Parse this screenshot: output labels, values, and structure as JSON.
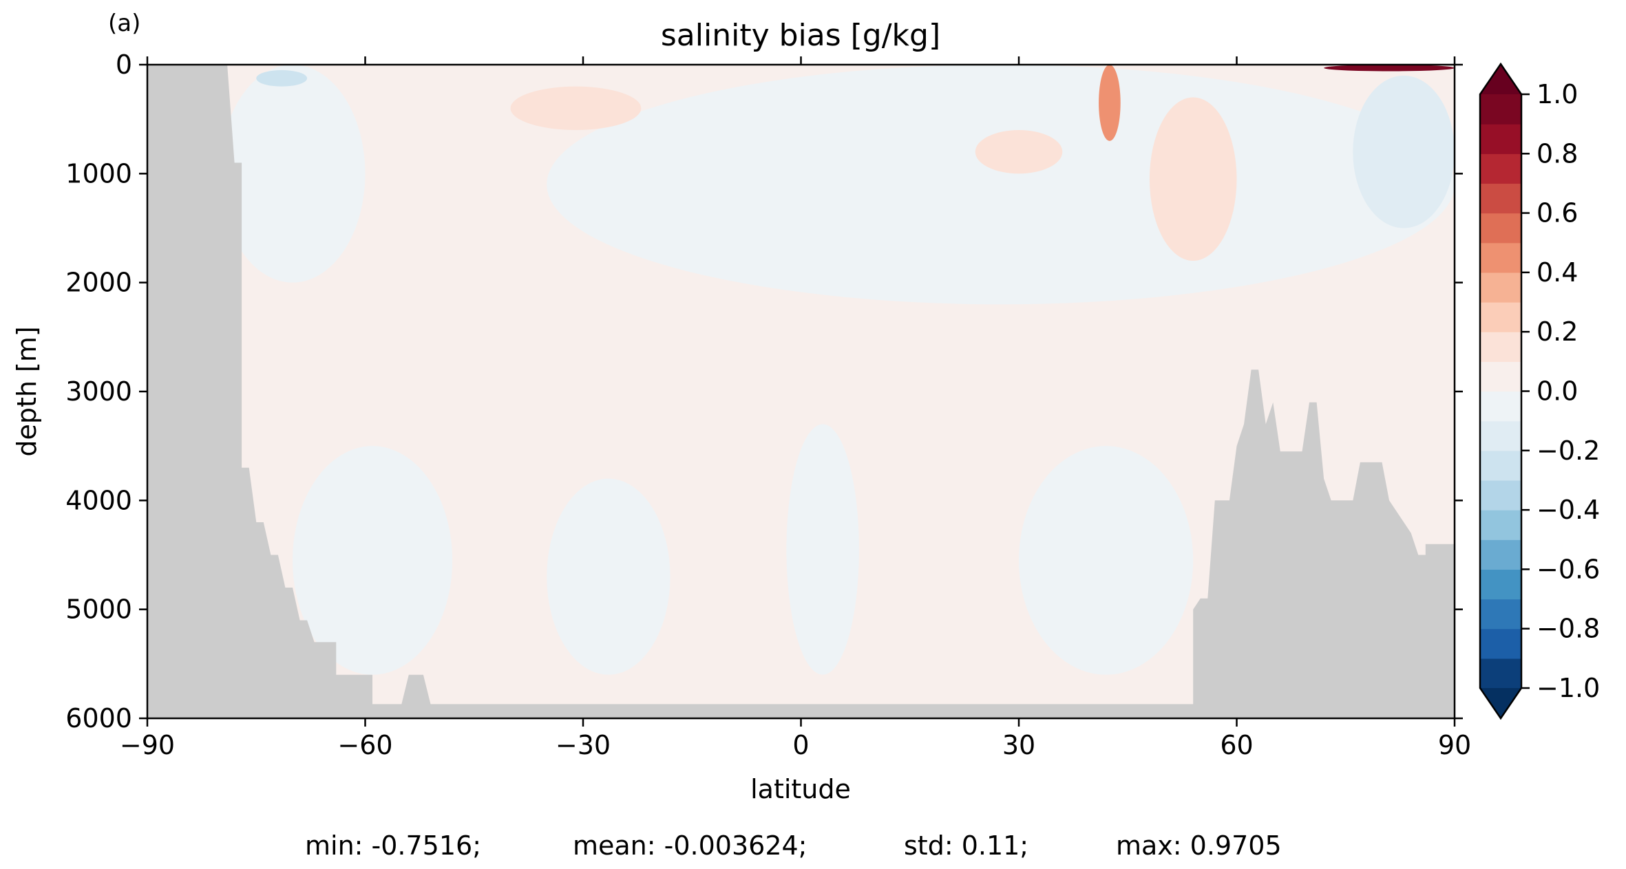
{
  "chart_data": {
    "type": "heatmap",
    "panel_label": "(a)",
    "title": "salinity bias [g/kg]",
    "xlabel": "latitude",
    "ylabel": "depth [m]",
    "xlim": [
      -90,
      90
    ],
    "ylim": [
      6000,
      0
    ],
    "x_ticks": [
      -90,
      -60,
      -30,
      0,
      30,
      60,
      90
    ],
    "y_ticks": [
      0,
      1000,
      2000,
      3000,
      4000,
      5000,
      6000
    ],
    "x_tick_labels": [
      "−90",
      "−60",
      "−30",
      "0",
      "30",
      "60",
      "90"
    ],
    "y_tick_labels": [
      "0",
      "1000",
      "2000",
      "3000",
      "4000",
      "5000",
      "6000"
    ],
    "colorbar": {
      "min": -1.0,
      "max": 1.0,
      "levels": [
        -1.0,
        -0.9,
        -0.8,
        -0.7,
        -0.6,
        -0.5,
        -0.4,
        -0.3,
        -0.2,
        -0.1,
        0.0,
        0.1,
        0.2,
        0.3,
        0.4,
        0.5,
        0.6,
        0.7,
        0.8,
        0.9,
        1.0
      ],
      "colors": [
        "#0c3f7a",
        "#1c5fa8",
        "#2e78b7",
        "#4393c3",
        "#6aabd1",
        "#92c5de",
        "#b3d5e8",
        "#cde3ef",
        "#e0ecf3",
        "#eef3f6",
        "#f8efec",
        "#fbe2d8",
        "#fbcdb8",
        "#f6b294",
        "#ee9171",
        "#df6f56",
        "#cb4c43",
        "#b52732",
        "#970f27",
        "#7a0622"
      ],
      "over_color": "#67001f",
      "under_color": "#053061",
      "tick_values": [
        1.0,
        0.8,
        0.6,
        0.4,
        0.2,
        0.0,
        -0.2,
        -0.4,
        -0.6,
        -0.8,
        -1.0
      ],
      "tick_labels": [
        "1.0",
        "0.8",
        "0.6",
        "0.4",
        "0.2",
        "0.0",
        "−0.2",
        "−0.4",
        "−0.6",
        "−0.8",
        "−1.0"
      ],
      "extend": "both"
    },
    "field": {
      "background_value": 0.03,
      "regions": [
        {
          "name": "north-upper-negative",
          "value": -0.05,
          "lat": [
            -35,
            90
          ],
          "depth": [
            0,
            2200
          ]
        },
        {
          "name": "antarctic-upper-negative",
          "value": -0.05,
          "lat": [
            -80,
            -60
          ],
          "depth": [
            0,
            2000
          ]
        },
        {
          "name": "south-intermediate-positive",
          "value": 0.15,
          "lat": [
            -40,
            -22
          ],
          "depth": [
            200,
            600
          ]
        },
        {
          "name": "antarctic-surface-negative",
          "value": -0.25,
          "lat": [
            -75,
            -68
          ],
          "depth": [
            50,
            200
          ]
        },
        {
          "name": "north-intermediate-positive",
          "value": 0.12,
          "lat": [
            24,
            36
          ],
          "depth": [
            600,
            1000
          ]
        },
        {
          "name": "midlat-plume-positive",
          "value": 0.4,
          "lat": [
            41,
            44
          ],
          "depth": [
            0,
            700
          ]
        },
        {
          "name": "subpolar-positive",
          "value": 0.12,
          "lat": [
            48,
            60
          ],
          "depth": [
            300,
            1800
          ]
        },
        {
          "name": "arctic-mid-negative",
          "value": -0.2,
          "lat": [
            76,
            90
          ],
          "depth": [
            100,
            1500
          ]
        },
        {
          "name": "arctic-surface-positive",
          "value": 0.97,
          "lat": [
            72,
            90
          ],
          "depth": [
            0,
            60
          ]
        },
        {
          "name": "abyssal-negative-a",
          "value": -0.05,
          "lat": [
            -70,
            -48
          ],
          "depth": [
            3500,
            5600
          ]
        },
        {
          "name": "abyssal-negative-b",
          "value": -0.05,
          "lat": [
            -35,
            -18
          ],
          "depth": [
            3800,
            5600
          ]
        },
        {
          "name": "abyssal-negative-c",
          "value": -0.05,
          "lat": [
            -2,
            8
          ],
          "depth": [
            3300,
            5600
          ]
        },
        {
          "name": "abyssal-negative-d",
          "value": -0.05,
          "lat": [
            30,
            54
          ],
          "depth": [
            3500,
            5600
          ]
        }
      ]
    },
    "topography": [
      [
        -90,
        0
      ],
      [
        -79,
        0
      ],
      [
        -78,
        900
      ],
      [
        -77,
        900
      ],
      [
        -77,
        3700
      ],
      [
        -76,
        3700
      ],
      [
        -75,
        4200
      ],
      [
        -74,
        4200
      ],
      [
        -73,
        4500
      ],
      [
        -72,
        4500
      ],
      [
        -71,
        4800
      ],
      [
        -70,
        4800
      ],
      [
        -69,
        5100
      ],
      [
        -68,
        5100
      ],
      [
        -67,
        5300
      ],
      [
        -64,
        5300
      ],
      [
        -64,
        5600
      ],
      [
        -60,
        5600
      ],
      [
        -59,
        5600
      ],
      [
        -59,
        5870
      ],
      [
        -55,
        5870
      ],
      [
        -54,
        5600
      ],
      [
        -52,
        5600
      ],
      [
        -51,
        5870
      ],
      [
        54,
        5870
      ],
      [
        54,
        5000
      ],
      [
        55,
        4900
      ],
      [
        56,
        4900
      ],
      [
        57,
        4000
      ],
      [
        59,
        4000
      ],
      [
        60,
        3500
      ],
      [
        61,
        3300
      ],
      [
        62,
        2800
      ],
      [
        63,
        2800
      ],
      [
        64,
        3300
      ],
      [
        65,
        3100
      ],
      [
        66,
        3550
      ],
      [
        69,
        3550
      ],
      [
        70,
        3100
      ],
      [
        71,
        3100
      ],
      [
        72,
        3800
      ],
      [
        73,
        4000
      ],
      [
        76,
        4000
      ],
      [
        77,
        3650
      ],
      [
        80,
        3650
      ],
      [
        81,
        4000
      ],
      [
        83,
        4200
      ],
      [
        84,
        4300
      ],
      [
        85,
        4500
      ],
      [
        86,
        4500
      ],
      [
        86,
        4400
      ],
      [
        90,
        4400
      ],
      [
        90,
        6000
      ],
      [
        -90,
        6000
      ]
    ],
    "land_color": "#cccccc",
    "stats_text": {
      "min": "min: -0.7516;",
      "mean": "mean: -0.003624;",
      "std": "std: 0.11;",
      "max": "max: 0.9705"
    }
  }
}
